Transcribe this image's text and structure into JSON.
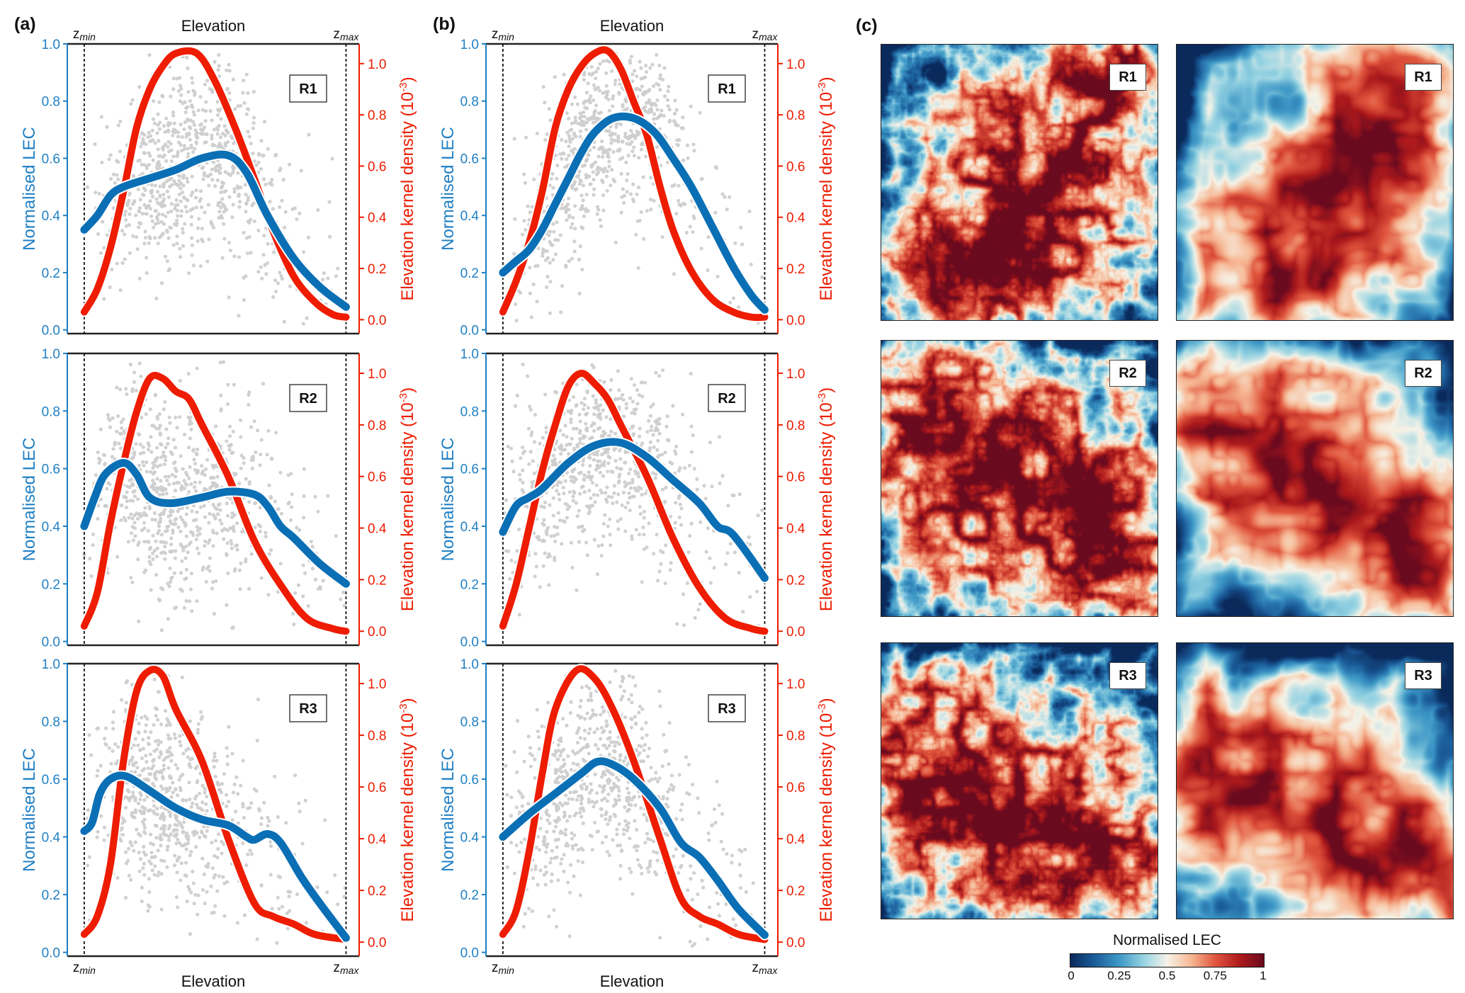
{
  "panel_labels": [
    "(a)",
    "(b)",
    "(c)"
  ],
  "left_axis": {
    "title": "Normalised LEC",
    "ticks": [
      "0.0",
      "0.2",
      "0.4",
      "0.6",
      "0.8",
      "1.0"
    ],
    "range": [
      0,
      1
    ]
  },
  "right_axis": {
    "title_main": "Elevation kernel density (10",
    "title_sup": "-3",
    "title_end": ")",
    "ticks": [
      "0.0",
      "0.2",
      "0.4",
      "0.6",
      "0.8",
      "1.0"
    ],
    "range": [
      -0.04,
      1.08
    ]
  },
  "x_axis": {
    "title": "Elevation",
    "min_label": {
      "base": "z",
      "sub": "min"
    },
    "max_label": {
      "base": "z",
      "sub": "max"
    }
  },
  "colors": {
    "lec": "#0a6fb5",
    "density": "#ee1c00",
    "scatter": "#d2d2d2",
    "axis_left": "#1f7fc4",
    "axis_right": "#ee1c00"
  },
  "chart_data": [
    {
      "panel": "a",
      "region": "R1",
      "type": "line",
      "x": [
        0,
        0.05,
        0.1,
        0.15,
        0.25,
        0.35,
        0.45,
        0.55,
        0.62,
        0.7,
        0.8,
        0.9,
        1.0
      ],
      "lec": [
        0.35,
        0.4,
        0.47,
        0.5,
        0.53,
        0.56,
        0.6,
        0.61,
        0.55,
        0.4,
        0.25,
        0.15,
        0.08
      ],
      "density_x": [
        0,
        0.05,
        0.1,
        0.15,
        0.2,
        0.25,
        0.3,
        0.35,
        0.43,
        0.5,
        0.58,
        0.65,
        0.72,
        0.8,
        0.88,
        0.95,
        1.0
      ],
      "density": [
        0.03,
        0.12,
        0.28,
        0.5,
        0.75,
        0.9,
        0.99,
        1.04,
        1.04,
        0.93,
        0.74,
        0.55,
        0.35,
        0.17,
        0.07,
        0.02,
        0.01
      ]
    },
    {
      "panel": "a",
      "region": "R2",
      "type": "line",
      "x": [
        0,
        0.04,
        0.08,
        0.15,
        0.2,
        0.25,
        0.33,
        0.45,
        0.55,
        0.65,
        0.7,
        0.75,
        0.8,
        0.9,
        1.0
      ],
      "lec": [
        0.4,
        0.5,
        0.58,
        0.62,
        0.58,
        0.5,
        0.48,
        0.5,
        0.52,
        0.51,
        0.47,
        0.4,
        0.36,
        0.27,
        0.2
      ],
      "density_x": [
        0,
        0.05,
        0.1,
        0.15,
        0.2,
        0.25,
        0.3,
        0.35,
        0.4,
        0.45,
        0.55,
        0.65,
        0.75,
        0.85,
        0.95,
        1.0
      ],
      "density": [
        0.02,
        0.15,
        0.42,
        0.65,
        0.85,
        0.98,
        0.98,
        0.93,
        0.9,
        0.8,
        0.6,
        0.35,
        0.18,
        0.05,
        0.01,
        0.0
      ]
    },
    {
      "panel": "a",
      "region": "R3",
      "type": "line",
      "x": [
        0,
        0.03,
        0.06,
        0.1,
        0.16,
        0.25,
        0.35,
        0.45,
        0.55,
        0.62,
        0.65,
        0.7,
        0.75,
        0.83,
        0.9,
        1.0
      ],
      "lec": [
        0.42,
        0.45,
        0.55,
        0.6,
        0.61,
        0.56,
        0.5,
        0.46,
        0.44,
        0.4,
        0.39,
        0.41,
        0.38,
        0.26,
        0.17,
        0.05
      ],
      "density_x": [
        0,
        0.05,
        0.1,
        0.15,
        0.2,
        0.25,
        0.3,
        0.35,
        0.45,
        0.55,
        0.65,
        0.72,
        0.8,
        0.88,
        1.0
      ],
      "density": [
        0.03,
        0.1,
        0.3,
        0.7,
        0.97,
        1.05,
        1.03,
        0.9,
        0.7,
        0.4,
        0.15,
        0.1,
        0.07,
        0.03,
        0.01
      ]
    },
    {
      "panel": "b",
      "region": "R1",
      "type": "line",
      "x": [
        0,
        0.05,
        0.1,
        0.15,
        0.2,
        0.25,
        0.3,
        0.35,
        0.42,
        0.5,
        0.58,
        0.65,
        0.72,
        0.8,
        0.88,
        0.95,
        1.0
      ],
      "lec": [
        0.2,
        0.24,
        0.28,
        0.35,
        0.44,
        0.53,
        0.62,
        0.69,
        0.74,
        0.74,
        0.69,
        0.6,
        0.5,
        0.36,
        0.22,
        0.12,
        0.07
      ],
      "density_x": [
        0,
        0.05,
        0.1,
        0.15,
        0.2,
        0.25,
        0.3,
        0.35,
        0.4,
        0.45,
        0.5,
        0.55,
        0.6,
        0.65,
        0.72,
        0.8,
        0.88,
        0.95,
        1.0
      ],
      "density": [
        0.03,
        0.15,
        0.3,
        0.5,
        0.75,
        0.9,
        0.99,
        1.04,
        1.05,
        0.98,
        0.85,
        0.72,
        0.52,
        0.35,
        0.19,
        0.08,
        0.03,
        0.01,
        0.01
      ]
    },
    {
      "panel": "b",
      "region": "R2",
      "type": "line",
      "x": [
        0,
        0.05,
        0.1,
        0.15,
        0.25,
        0.35,
        0.45,
        0.55,
        0.65,
        0.75,
        0.82,
        0.88,
        1.0
      ],
      "lec": [
        0.38,
        0.47,
        0.5,
        0.53,
        0.62,
        0.68,
        0.69,
        0.64,
        0.56,
        0.48,
        0.4,
        0.37,
        0.22
      ],
      "density_x": [
        0,
        0.05,
        0.1,
        0.15,
        0.2,
        0.25,
        0.3,
        0.35,
        0.4,
        0.45,
        0.55,
        0.65,
        0.75,
        0.85,
        0.95,
        1.0
      ],
      "density": [
        0.02,
        0.18,
        0.4,
        0.62,
        0.8,
        0.95,
        1.0,
        0.96,
        0.9,
        0.8,
        0.6,
        0.36,
        0.17,
        0.05,
        0.01,
        0.0
      ]
    },
    {
      "panel": "b",
      "region": "R3",
      "type": "line",
      "x": [
        0,
        0.1,
        0.2,
        0.3,
        0.36,
        0.42,
        0.5,
        0.6,
        0.68,
        0.75,
        0.82,
        0.9,
        1.0
      ],
      "lec": [
        0.4,
        0.48,
        0.55,
        0.62,
        0.66,
        0.65,
        0.6,
        0.5,
        0.38,
        0.33,
        0.25,
        0.15,
        0.06
      ],
      "density_x": [
        0,
        0.05,
        0.1,
        0.15,
        0.2,
        0.28,
        0.35,
        0.42,
        0.5,
        0.6,
        0.68,
        0.75,
        0.82,
        0.9,
        1.0
      ],
      "density": [
        0.03,
        0.12,
        0.35,
        0.65,
        0.9,
        1.05,
        1.02,
        0.9,
        0.7,
        0.4,
        0.17,
        0.1,
        0.07,
        0.03,
        0.01
      ]
    }
  ],
  "maps": [
    {
      "region": "R1",
      "detail": "fine"
    },
    {
      "region": "R1",
      "detail": "coarse"
    },
    {
      "region": "R2",
      "detail": "fine"
    },
    {
      "region": "R2",
      "detail": "coarse"
    },
    {
      "region": "R3",
      "detail": "fine"
    },
    {
      "region": "R3",
      "detail": "coarse"
    }
  ],
  "colorbar": {
    "title": "Normalised LEC",
    "ticks": [
      "0",
      "0.25",
      "0.5",
      "0.75",
      "1"
    ],
    "stops": [
      "#0b2a5c",
      "#1b5d9a",
      "#3d97c6",
      "#94d2e2",
      "#f6f3e8",
      "#f6b793",
      "#e0553d",
      "#ae1a1c",
      "#6a0a1e"
    ]
  }
}
